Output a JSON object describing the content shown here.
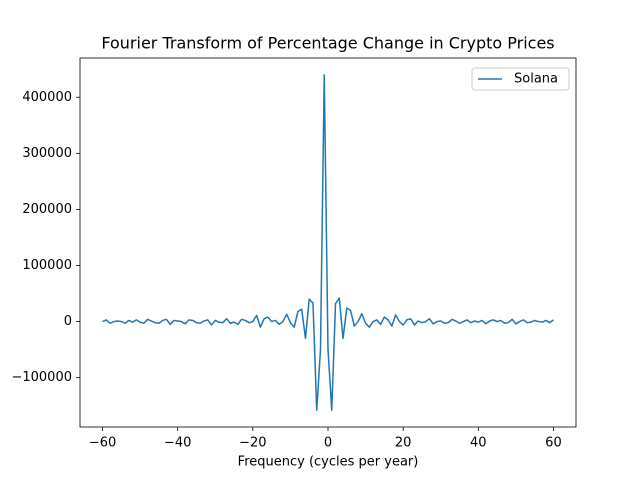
{
  "chart_data": {
    "type": "line",
    "title": "Fourier Transform of Percentage Change in Crypto Prices",
    "x_label": "Frequency (cycles per year)",
    "xlim": [
      -66,
      66
    ],
    "ylim": [
      -188000,
      470000
    ],
    "xticks": [
      {
        "value": -60,
        "label": "−60"
      },
      {
        "value": -40,
        "label": "−40"
      },
      {
        "value": -20,
        "label": "−20"
      },
      0,
      20,
      40,
      60
    ],
    "yticks": [
      {
        "value": -100000,
        "label": "−100000"
      },
      0,
      100000,
      200000,
      300000,
      400000
    ],
    "grid": false,
    "legend": "upper right",
    "x": [
      -60,
      -59,
      -58,
      -57,
      -56,
      -55,
      -54,
      -53,
      -52,
      -51,
      -50,
      -49,
      -48,
      -47,
      -46,
      -45,
      -44,
      -43,
      -42,
      -41,
      -40,
      -39,
      -38,
      -37,
      -36,
      -35,
      -34,
      -33,
      -32,
      -31,
      -30,
      -29,
      -28,
      -27,
      -26,
      -25,
      -24,
      -23,
      -22,
      -21,
      -20,
      -19,
      -18,
      -17,
      -16,
      -15,
      -14,
      -13,
      -12,
      -11,
      -10,
      -9,
      -8,
      -7,
      -6,
      -5,
      -4,
      -3,
      -2,
      -1,
      0,
      1,
      2,
      3,
      4,
      5,
      6,
      7,
      8,
      9,
      10,
      11,
      12,
      13,
      14,
      15,
      16,
      17,
      18,
      19,
      20,
      21,
      22,
      23,
      24,
      25,
      26,
      27,
      28,
      29,
      30,
      31,
      32,
      33,
      34,
      35,
      36,
      37,
      38,
      39,
      40,
      41,
      42,
      43,
      44,
      45,
      46,
      47,
      48,
      49,
      50,
      51,
      52,
      53,
      54,
      55,
      56,
      57,
      58,
      59,
      60
    ],
    "series": [
      {
        "name": "Solana",
        "color": "#1f77b4",
        "values": [
          0,
          3000,
          -3000,
          0,
          1000,
          0,
          -3000,
          2000,
          -1000,
          3000,
          -1000,
          -3000,
          4000,
          1000,
          -2000,
          -3000,
          2000,
          4000,
          -5000,
          2000,
          1000,
          0,
          -4000,
          3000,
          2000,
          -2000,
          -3000,
          1000,
          3000,
          -6000,
          2000,
          -1000,
          -2000,
          5000,
          -3000,
          -1000,
          -5000,
          4000,
          2000,
          -2000,
          0,
          11000,
          -10000,
          5000,
          8000,
          0,
          2000,
          -5000,
          0,
          13000,
          -2000,
          -10000,
          18000,
          22000,
          -30000,
          40000,
          33000,
          -158000,
          -50000,
          440000,
          -50000,
          -158000,
          32000,
          42000,
          -30000,
          24000,
          20000,
          -8000,
          0,
          14000,
          -3000,
          -10000,
          0,
          3000,
          -5000,
          8000,
          3000,
          -8000,
          12000,
          0,
          -6000,
          3000,
          5000,
          -6000,
          1000,
          -2000,
          0,
          5000,
          -4000,
          0,
          1000,
          -3000,
          -2000,
          4000,
          1000,
          -3000,
          0,
          3000,
          -2000,
          1000,
          -1000,
          2000,
          -4000,
          1000,
          3000,
          0,
          2000,
          -3000,
          -2000,
          4000,
          -4000,
          0,
          3000,
          -2000,
          -1000,
          2000,
          0,
          -1000,
          2000,
          -2000,
          3000
        ]
      }
    ]
  }
}
